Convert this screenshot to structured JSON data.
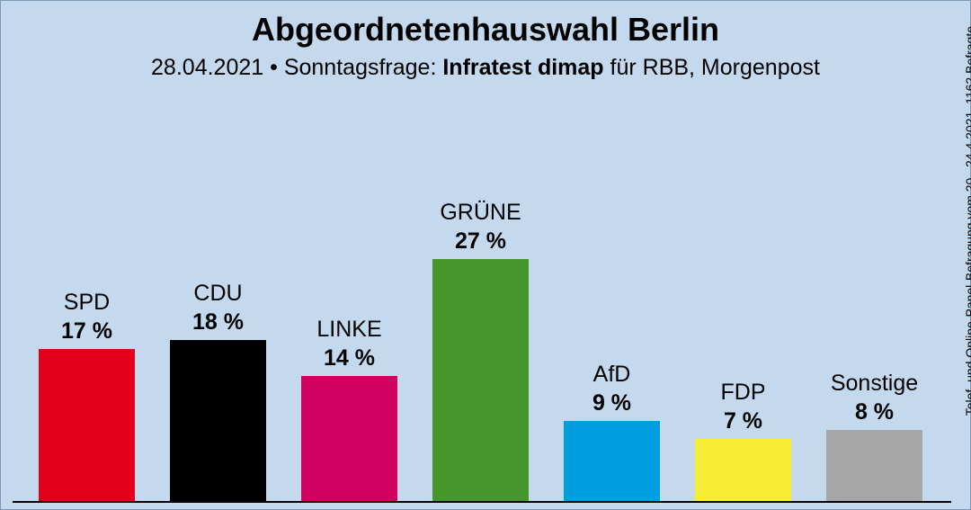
{
  "title": "Abgeordnetenhauswahl Berlin",
  "subtitle": {
    "date": "28.04.2021",
    "separator": "•",
    "label": "Sonntagsfrage:",
    "institute": "Infratest dimap",
    "clients": "für RBB, Morgenpost"
  },
  "side_note": "Telef. und Online-Panel-Befragung vom 20.–24.4.2021, 1162 Befragte",
  "chart_data": {
    "type": "bar",
    "title": "Abgeordnetenhauswahl Berlin",
    "categories": [
      "SPD",
      "CDU",
      "LINKE",
      "GRÜNE",
      "AfD",
      "FDP",
      "Sonstige"
    ],
    "values": [
      17,
      18,
      14,
      27,
      9,
      7,
      8
    ],
    "value_labels": [
      "17 %",
      "18 %",
      "14 %",
      "27 %",
      "9 %",
      "7 %",
      "8 %"
    ],
    "colors": [
      "#e3001b",
      "#000000",
      "#cf005f",
      "#46962b",
      "#009ee0",
      "#f7ec35",
      "#a6a6a6"
    ],
    "unit": "%",
    "xlabel": "",
    "ylabel": "",
    "grid": false,
    "legend": "none"
  }
}
